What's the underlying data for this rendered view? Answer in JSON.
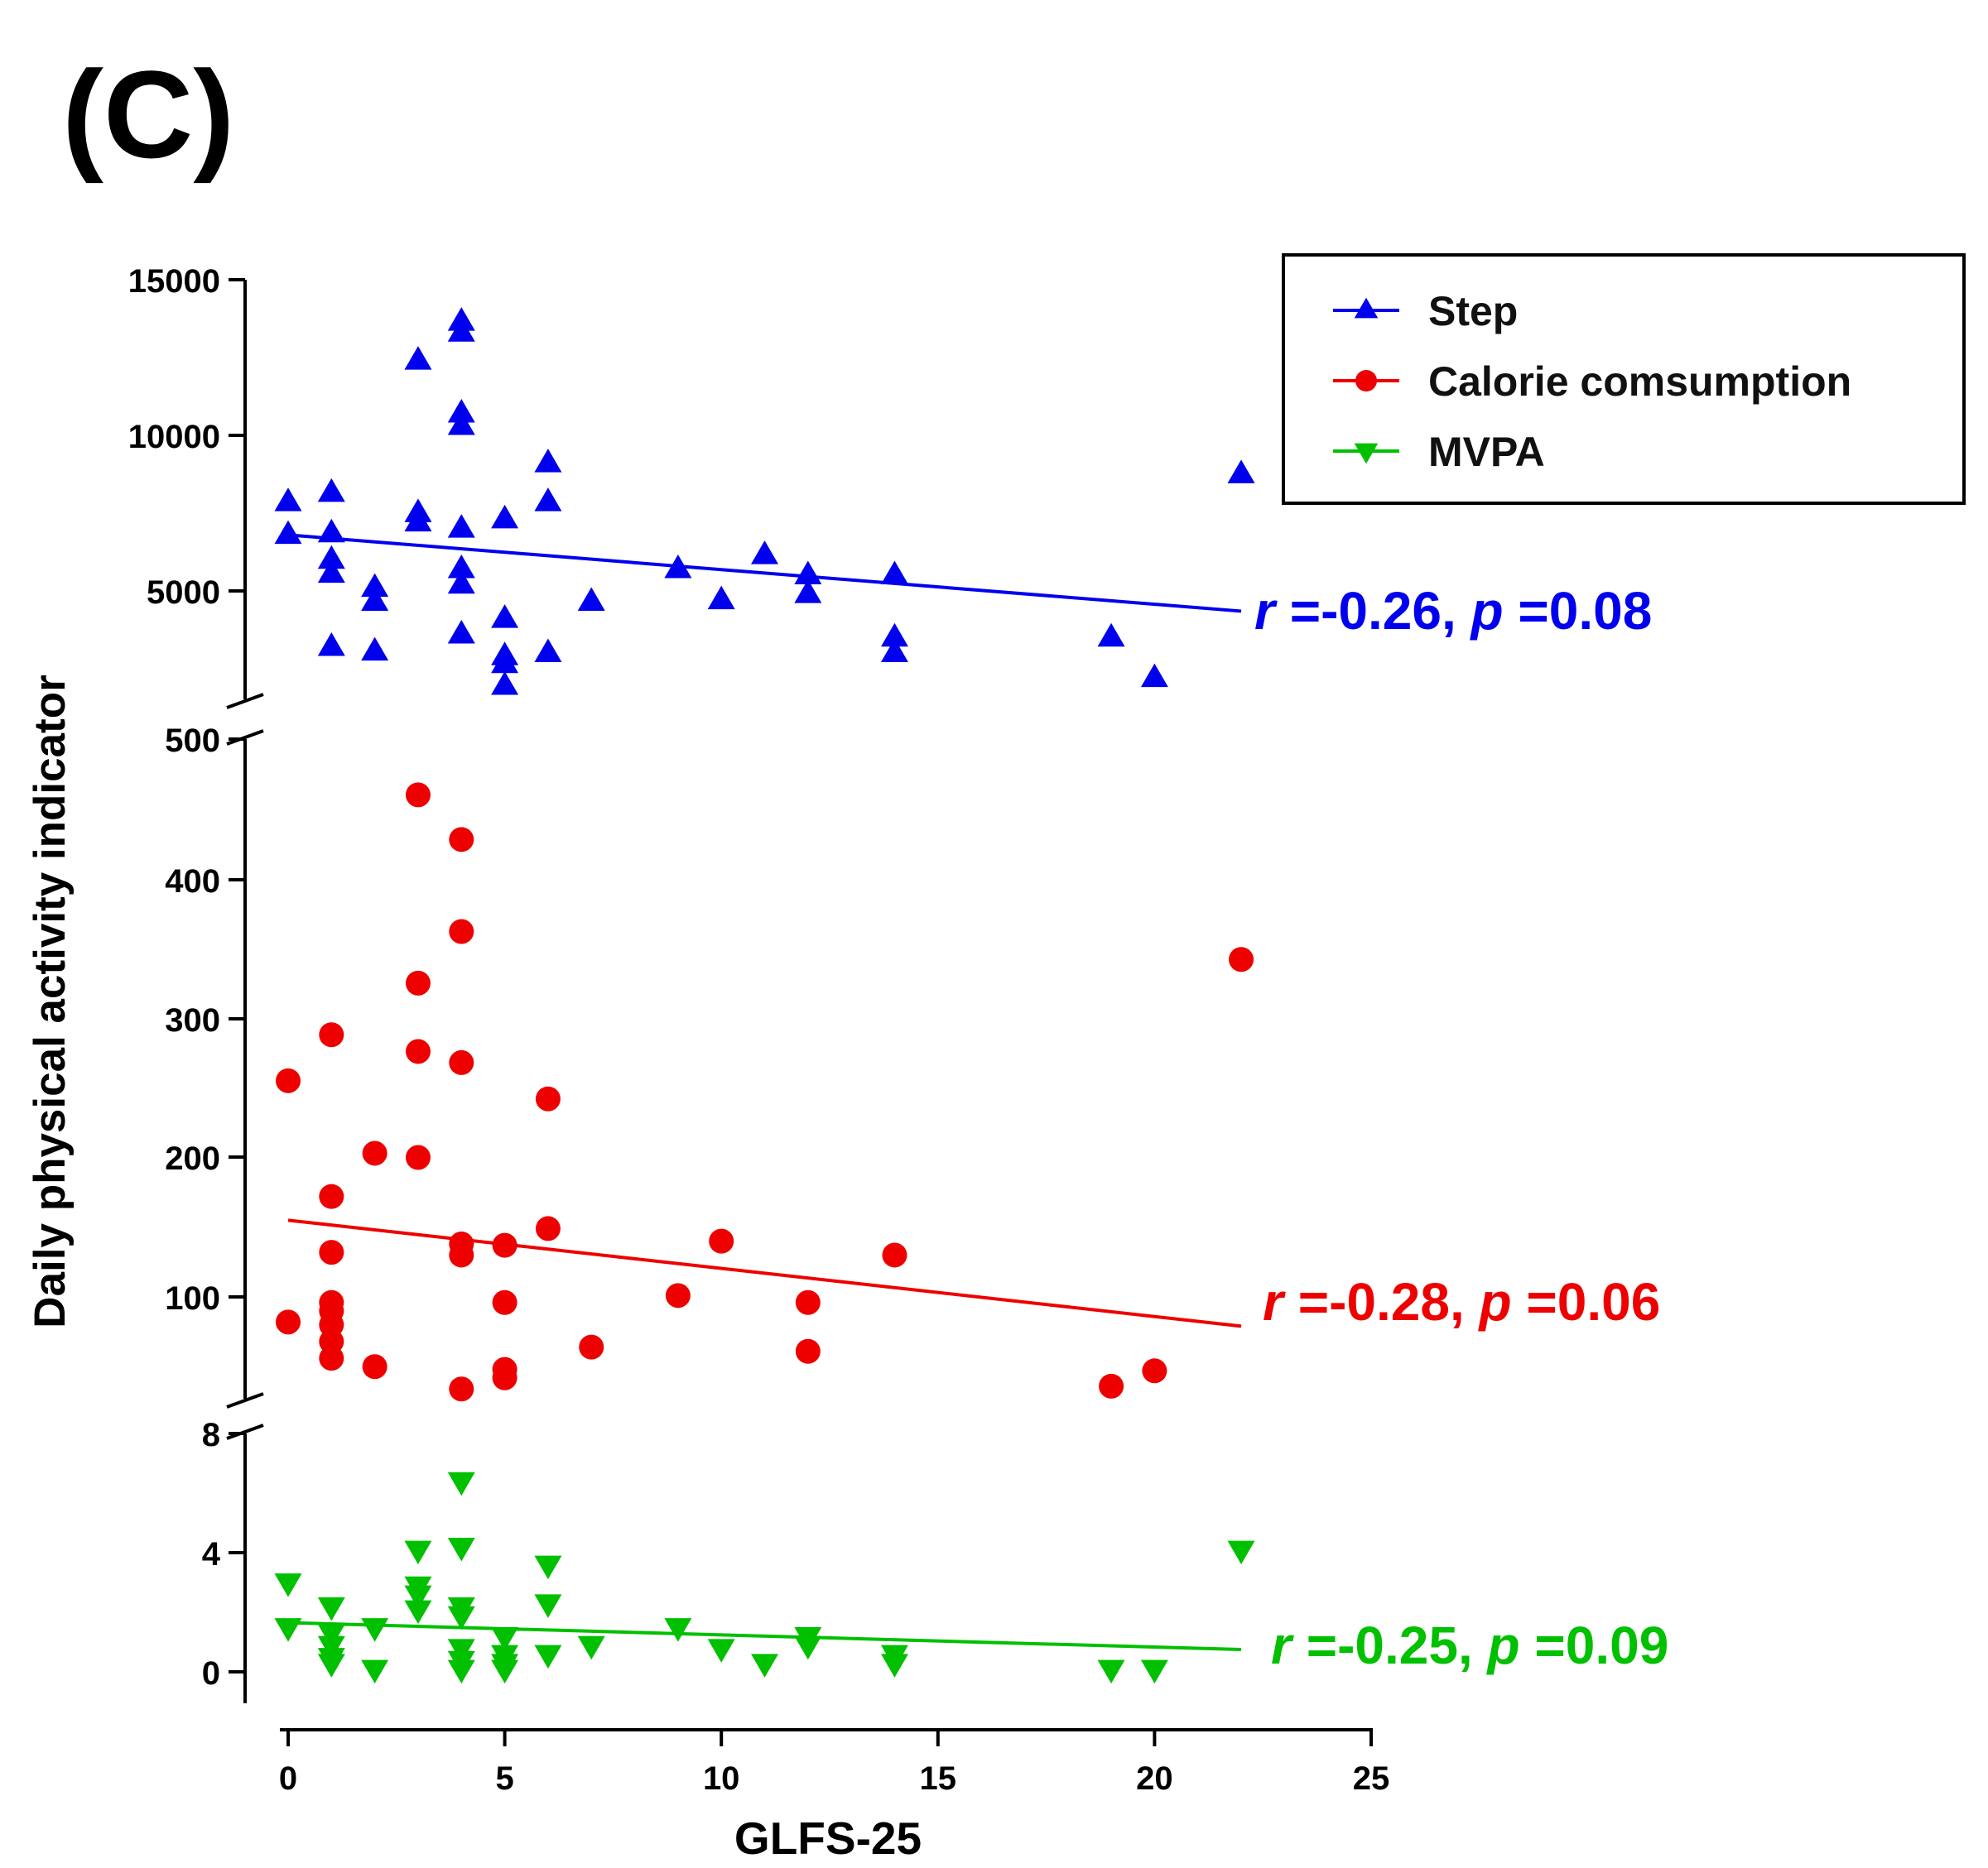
{
  "panel_label": "(C)",
  "colors": {
    "step": "#0000ee",
    "calorie": "#ee0000",
    "mvpa": "#00c000",
    "axis": "#000000"
  },
  "chart_data": {
    "type": "scatter",
    "xlabel": "GLFS-25",
    "ylabel": "Daily physical activity indicator",
    "x_ticks": [
      "0",
      "5",
      "10",
      "15",
      "20",
      "25"
    ],
    "xlim": [
      0,
      25
    ],
    "legend_position": "top-right",
    "y_segments": [
      {
        "name": "step",
        "ylim": [
          1800,
          15000
        ],
        "ticks": [
          "5000",
          "10000",
          "15000"
        ]
      },
      {
        "name": "calorie",
        "ylim": [
          35,
          500
        ],
        "ticks": [
          "100",
          "200",
          "300",
          "400",
          "500"
        ]
      },
      {
        "name": "mvpa",
        "ylim": [
          -1,
          8
        ],
        "ticks": [
          "0",
          "4",
          "8"
        ]
      }
    ],
    "series": [
      {
        "key": "step",
        "name": "Step",
        "marker": "triangle-up",
        "annotation": {
          "r_label": "r",
          "r_value": " =-0.26, ",
          "p_label": "p",
          "p_value": " =0.08"
        },
        "trend": {
          "x": [
            0,
            22
          ],
          "y": [
            6800,
            4350
          ]
        },
        "points": [
          [
            0,
            7850
          ],
          [
            0,
            6800
          ],
          [
            1,
            8150
          ],
          [
            1,
            6850
          ],
          [
            1,
            6000
          ],
          [
            1,
            5550
          ],
          [
            1,
            3200
          ],
          [
            2,
            5100
          ],
          [
            2,
            4650
          ],
          [
            2,
            3050
          ],
          [
            3,
            12400
          ],
          [
            3,
            7500
          ],
          [
            3,
            7200
          ],
          [
            4,
            13650
          ],
          [
            4,
            13300
          ],
          [
            4,
            10700
          ],
          [
            4,
            10300
          ],
          [
            4,
            7000
          ],
          [
            4,
            5700
          ],
          [
            4,
            5200
          ],
          [
            4,
            3600
          ],
          [
            5,
            7300
          ],
          [
            5,
            4100
          ],
          [
            5,
            2900
          ],
          [
            5,
            2650
          ],
          [
            5,
            1950
          ],
          [
            6,
            9100
          ],
          [
            6,
            7850
          ],
          [
            6,
            3000
          ],
          [
            7,
            4650
          ],
          [
            9,
            5700
          ],
          [
            10,
            4700
          ],
          [
            11,
            6150
          ],
          [
            12,
            5500
          ],
          [
            12,
            4900
          ],
          [
            14,
            5500
          ],
          [
            14,
            3500
          ],
          [
            14,
            3000
          ],
          [
            19,
            3500
          ],
          [
            20,
            2200
          ],
          [
            22,
            8750
          ]
        ]
      },
      {
        "key": "calorie",
        "name": "Calorie comsumption",
        "marker": "circle",
        "annotation": {
          "r_label": "r",
          "r_value": " =-0.28, ",
          "p_label": "p",
          "p_value": " =0.06"
        },
        "trend": {
          "x": [
            0,
            22
          ],
          "y": [
            155,
            79
          ]
        },
        "points": [
          [
            0,
            255
          ],
          [
            0,
            82
          ],
          [
            1,
            288
          ],
          [
            1,
            172
          ],
          [
            1,
            132
          ],
          [
            1,
            96
          ],
          [
            1,
            90
          ],
          [
            1,
            80
          ],
          [
            1,
            68
          ],
          [
            1,
            56
          ],
          [
            2,
            203
          ],
          [
            2,
            50
          ],
          [
            3,
            460
          ],
          [
            3,
            325
          ],
          [
            3,
            276
          ],
          [
            3,
            200
          ],
          [
            4,
            428
          ],
          [
            4,
            362
          ],
          [
            4,
            268
          ],
          [
            4,
            138
          ],
          [
            4,
            130
          ],
          [
            4,
            34
          ],
          [
            5,
            137
          ],
          [
            5,
            96
          ],
          [
            5,
            48
          ],
          [
            5,
            42
          ],
          [
            6,
            242
          ],
          [
            6,
            149
          ],
          [
            7,
            64
          ],
          [
            9,
            101
          ],
          [
            10,
            140
          ],
          [
            12,
            96
          ],
          [
            12,
            61
          ],
          [
            14,
            130
          ],
          [
            19,
            36
          ],
          [
            20,
            47
          ],
          [
            22,
            342
          ]
        ]
      },
      {
        "key": "mvpa",
        "name": "MVPA",
        "marker": "triangle-down",
        "annotation": {
          "r_label": "r",
          "r_value": " =-0.25, ",
          "p_label": "p",
          "p_value": " =0.09"
        },
        "trend": {
          "x": [
            0,
            22
          ],
          "y": [
            1.65,
            0.75
          ]
        },
        "points": [
          [
            0,
            3.0
          ],
          [
            0,
            1.5
          ],
          [
            1,
            2.2
          ],
          [
            1,
            1.3
          ],
          [
            1,
            0.9
          ],
          [
            1,
            0.5
          ],
          [
            1,
            0.3
          ],
          [
            2,
            1.5
          ],
          [
            2,
            0.1
          ],
          [
            3,
            4.1
          ],
          [
            3,
            2.9
          ],
          [
            3,
            2.6
          ],
          [
            3,
            2.1
          ],
          [
            4,
            6.4
          ],
          [
            4,
            4.2
          ],
          [
            4,
            2.2
          ],
          [
            4,
            1.9
          ],
          [
            4,
            0.8
          ],
          [
            4,
            0.4
          ],
          [
            4,
            0.1
          ],
          [
            5,
            1.2
          ],
          [
            5,
            0.6
          ],
          [
            5,
            0.3
          ],
          [
            5,
            0.1
          ],
          [
            6,
            3.6
          ],
          [
            6,
            2.3
          ],
          [
            6,
            0.6
          ],
          [
            7,
            0.9
          ],
          [
            9,
            1.5
          ],
          [
            10,
            0.8
          ],
          [
            11,
            0.3
          ],
          [
            12,
            1.2
          ],
          [
            12,
            0.9
          ],
          [
            14,
            0.6
          ],
          [
            14,
            0.3
          ],
          [
            19,
            0.1
          ],
          [
            20,
            0.1
          ],
          [
            22,
            4.1
          ]
        ]
      }
    ]
  }
}
